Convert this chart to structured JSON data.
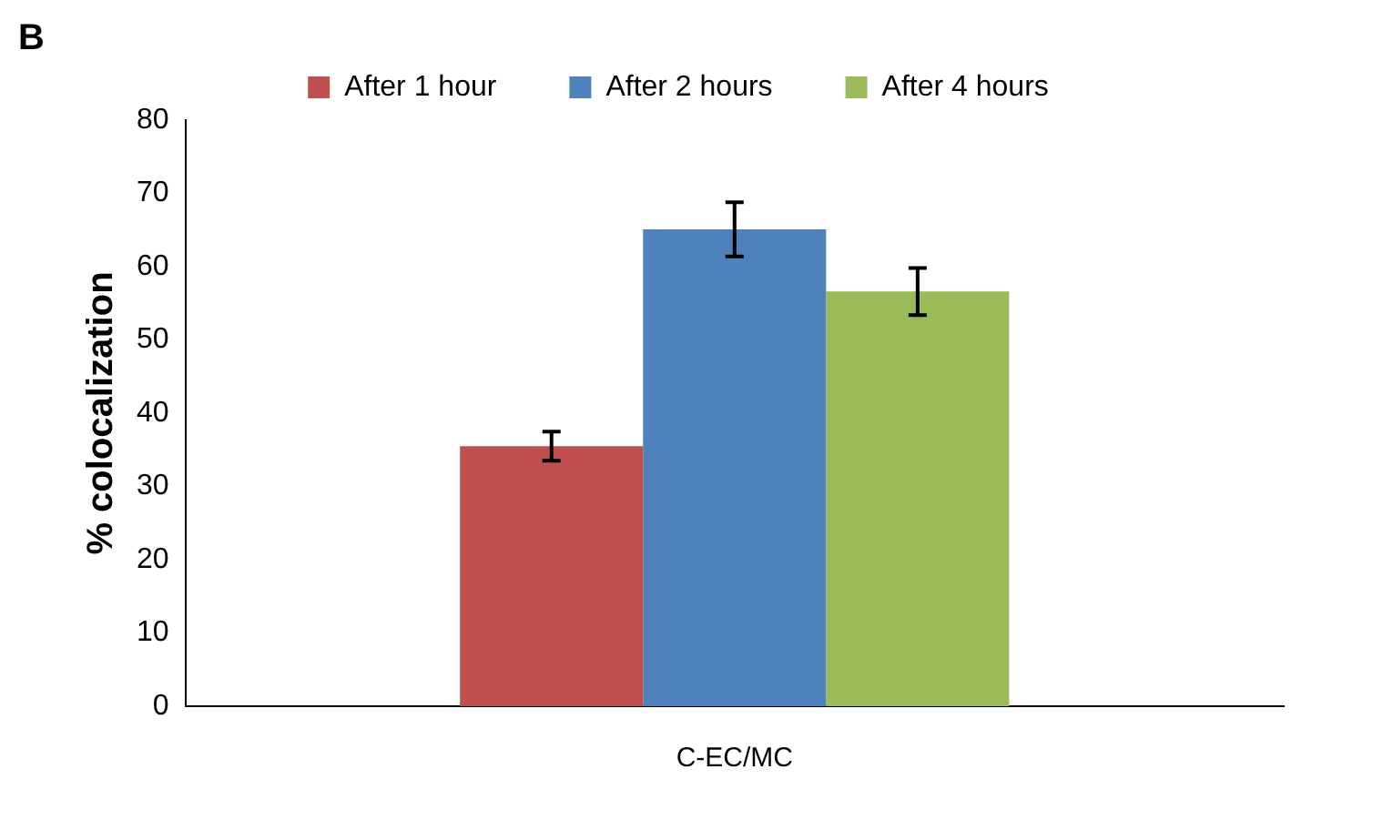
{
  "chart_data": {
    "type": "bar",
    "ylabel": "% colocalization",
    "categories": [
      "C-EC/MC"
    ],
    "series": [
      {
        "name": "After 1 hour",
        "color": "#c0504d",
        "values": [
          35.5
        ],
        "errors": [
          2
        ]
      },
      {
        "name": "After 2 hours",
        "color": "#4f81bd",
        "values": [
          65.1
        ],
        "errors": [
          3.7
        ]
      },
      {
        "name": "After 4 hours",
        "color": "#9bbb59",
        "values": [
          56.6
        ],
        "errors": [
          3.2
        ]
      }
    ],
    "ylim": [
      0,
      80
    ],
    "yticks": [
      0,
      10,
      20,
      30,
      40,
      50,
      60,
      70,
      80
    ],
    "grid": false,
    "legend": "top",
    "annotations": [
      "B"
    ]
  }
}
